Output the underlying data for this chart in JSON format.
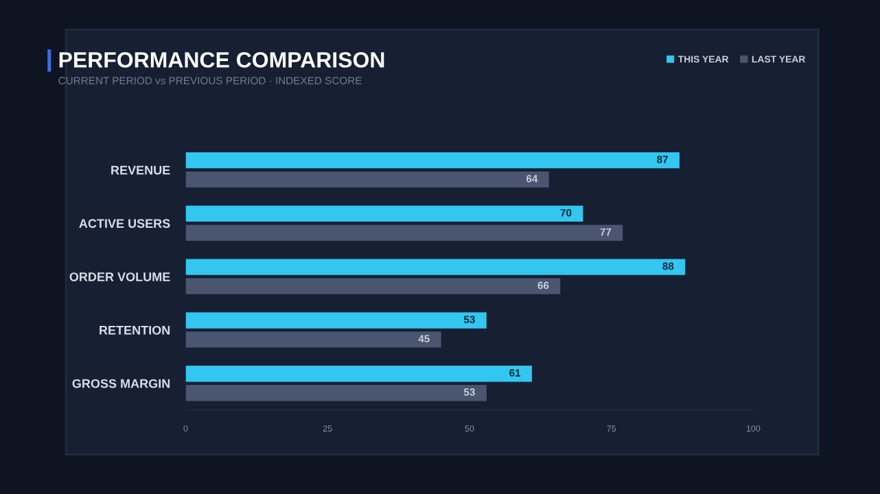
{
  "chart_data": {
    "type": "bar",
    "orientation": "horizontal",
    "title": "PERFORMANCE COMPARISON",
    "subtitle": "CURRENT PERIOD vs PREVIOUS PERIOD · INDEXED SCORE",
    "categories": [
      "REVENUE",
      "ACTIVE USERS",
      "ORDER VOLUME",
      "RETENTION",
      "GROSS MARGIN"
    ],
    "series": [
      {
        "name": "THIS YEAR",
        "color": "#33c6f0",
        "values": [
          87,
          70,
          88,
          53,
          61
        ]
      },
      {
        "name": "LAST YEAR",
        "color": "#4a5570",
        "values": [
          64,
          77,
          66,
          45,
          53
        ]
      }
    ],
    "xlim": [
      0,
      100
    ],
    "xticks": [
      0,
      25,
      50,
      75,
      100
    ],
    "grid": false,
    "legend": "top right",
    "data_labels": true
  }
}
